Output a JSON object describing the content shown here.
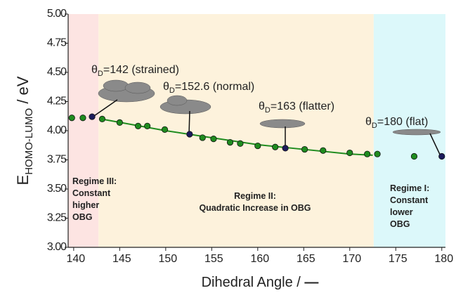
{
  "chart_data": {
    "type": "scatter",
    "xlim": [
      139.4,
      180.4
    ],
    "ylim": [
      3.0,
      5.0
    ],
    "xticks": [
      140,
      145,
      150,
      155,
      160,
      165,
      170,
      175,
      180
    ],
    "yticks": [
      {
        "value": 3.0,
        "label": "3.00"
      },
      {
        "value": 3.25,
        "label": "3.25"
      },
      {
        "value": 3.5,
        "label": "3.50"
      },
      {
        "value": 3.75,
        "label": "3.75"
      },
      {
        "value": 4.0,
        "label": "4.00"
      },
      {
        "value": 4.25,
        "label": "4.25"
      },
      {
        "value": 4.5,
        "label": "4.50"
      },
      {
        "value": 4.75,
        "label": "4.75"
      },
      {
        "value": 5.0,
        "label": "5.00"
      }
    ],
    "x_label": "Dihedral Angle / ",
    "x_label_symbol": "—",
    "y_label": {
      "main": "E",
      "sub": "HOMO-LUMO",
      "rest": " / eV"
    },
    "regions": [
      {
        "from": 139.4,
        "to": 142.7,
        "color": "#fde4e2"
      },
      {
        "from": 142.7,
        "to": 172.6,
        "color": "#fdf2dc"
      },
      {
        "from": 172.6,
        "to": 180.4,
        "color": "#dcf8fa"
      }
    ],
    "regime_labels": [
      [
        "Regime III:",
        "Constant",
        "higher",
        "OBG"
      ],
      [
        "Regime II:",
        "Quadratic Increase in OBG"
      ],
      [
        "Regime I:",
        "Constant",
        "lower",
        "OBG"
      ]
    ],
    "points": {
      "x": [
        139.8,
        141,
        142,
        143.1,
        145,
        147,
        148,
        149.9,
        152.6,
        154,
        155.2,
        157,
        158.1,
        160,
        161.9,
        163,
        165.1,
        167.1,
        170,
        171.9,
        173,
        177,
        180
      ],
      "values": [
        4.11,
        4.11,
        4.12,
        4.1,
        4.07,
        4.04,
        4.04,
        4.01,
        3.97,
        3.94,
        3.93,
        3.9,
        3.89,
        3.87,
        3.86,
        3.85,
        3.84,
        3.83,
        3.81,
        3.8,
        3.8,
        3.78,
        3.78
      ],
      "colors": [
        "#1f8c1f",
        "#1f8c1f",
        "#1b1b5c",
        "#1f8c1f",
        "#1f8c1f",
        "#1f8c1f",
        "#1f8c1f",
        "#1f8c1f",
        "#1b1b5c",
        "#1f8c1f",
        "#1f8c1f",
        "#1f8c1f",
        "#1f8c1f",
        "#1f8c1f",
        "#1f8c1f",
        "#1b1b5c",
        "#1f8c1f",
        "#1f8c1f",
        "#1f8c1f",
        "#1f8c1f",
        "#1f8c1f",
        "#1f8c1f",
        "#1b1b5c"
      ]
    },
    "fit": {
      "color": "#1f8c1f",
      "x": [
        143,
        150,
        155,
        160,
        165,
        170,
        172.5
      ],
      "values": [
        4.1,
        4.0,
        3.94,
        3.88,
        3.84,
        3.8,
        3.79
      ]
    },
    "annotations": [
      {
        "main": "θ",
        "sub": "D",
        "rest": "=142 (strained)"
      },
      {
        "main": "θ",
        "sub": "D",
        "rest": "=152.6 (normal)"
      },
      {
        "main": "θ",
        "sub": "D",
        "rest": "=163 (flatter)"
      },
      {
        "main": "θ",
        "sub": "D",
        "rest": "=180 (flat)"
      }
    ]
  }
}
